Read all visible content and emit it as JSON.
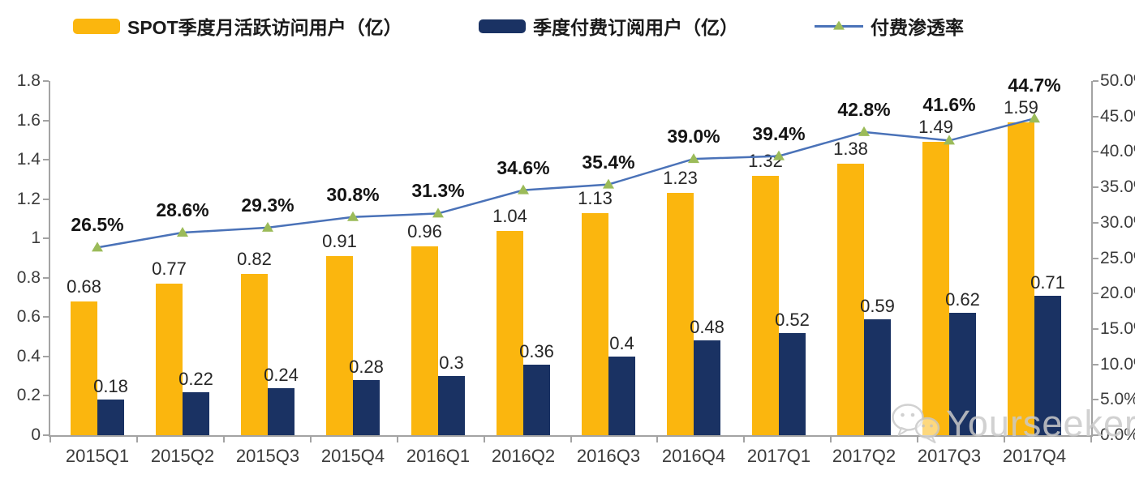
{
  "legend": {
    "items": [
      {
        "label": "SPOT季度月活跃访问用户（亿）",
        "swatch": "bar",
        "color": "#FBB60E"
      },
      {
        "label": "季度付费订阅用户（亿）",
        "swatch": "bar",
        "color": "#1A3263"
      },
      {
        "label": "付费渗透率",
        "swatch": "line",
        "color": "#4A72B8",
        "marker_color": "#9BBB59"
      }
    ]
  },
  "watermark": {
    "text": "Yourseeker",
    "icon": "wechat-icon"
  },
  "colors": {
    "mau_bar": "#FBB60E",
    "subs_bar": "#1A3263",
    "penetration_line": "#4A72B8",
    "penetration_marker": "#9BBB59",
    "axis": "#a3a3a3",
    "label_text": "#262626"
  },
  "chart_data": {
    "type": "bar",
    "subtype": "grouped-bars-with-line",
    "categories": [
      "2015Q1",
      "2015Q2",
      "2015Q3",
      "2015Q4",
      "2016Q1",
      "2016Q2",
      "2016Q3",
      "2016Q4",
      "2017Q1",
      "2017Q2",
      "2017Q3",
      "2017Q4"
    ],
    "series": [
      {
        "name": "SPOT季度月活跃访问用户（亿）",
        "type": "bar",
        "axis": "left",
        "color": "#FBB60E",
        "values": [
          0.68,
          0.77,
          0.82,
          0.91,
          0.96,
          1.04,
          1.13,
          1.23,
          1.32,
          1.38,
          1.49,
          1.59
        ],
        "labels": [
          "0.68",
          "0.77",
          "0.82",
          "0.91",
          "0.96",
          "1.04",
          "1.13",
          "1.23",
          "1.32",
          "1.38",
          "1.49",
          "1.59"
        ]
      },
      {
        "name": "季度付费订阅用户（亿）",
        "type": "bar",
        "axis": "left",
        "color": "#1A3263",
        "values": [
          0.18,
          0.22,
          0.24,
          0.28,
          0.3,
          0.36,
          0.4,
          0.48,
          0.52,
          0.59,
          0.62,
          0.71
        ],
        "labels": [
          "0.18",
          "0.22",
          "0.24",
          "0.28",
          "0.3",
          "0.36",
          "0.4",
          "0.48",
          "0.52",
          "0.59",
          "0.62",
          "0.71"
        ]
      },
      {
        "name": "付费渗透率",
        "type": "line",
        "axis": "right",
        "color": "#4A72B8",
        "marker": "triangle",
        "marker_color": "#9BBB59",
        "values": [
          26.5,
          28.6,
          29.3,
          30.8,
          31.3,
          34.6,
          35.4,
          39.0,
          39.4,
          42.8,
          41.6,
          44.7
        ],
        "labels": [
          "26.5%",
          "28.6%",
          "29.3%",
          "30.8%",
          "31.3%",
          "34.6%",
          "35.4%",
          "39.0%",
          "39.4%",
          "42.8%",
          "41.6%",
          "44.7%"
        ]
      }
    ],
    "left_axis": {
      "min": 0,
      "max": 1.8,
      "tick_labels": [
        "0",
        "0.2",
        "0.4",
        "0.6",
        "0.8",
        "1",
        "1.2",
        "1.4",
        "1.6",
        "1.8"
      ]
    },
    "right_axis": {
      "min": 0,
      "max": 50,
      "tick_labels": [
        "0.0%",
        "5.0%",
        "10.0%",
        "15.0%",
        "20.0%",
        "25.0%",
        "30.0%",
        "35.0%",
        "40.0%",
        "45.0%",
        "50.0%"
      ]
    },
    "grid": false,
    "legend_position": "top",
    "title": ""
  }
}
